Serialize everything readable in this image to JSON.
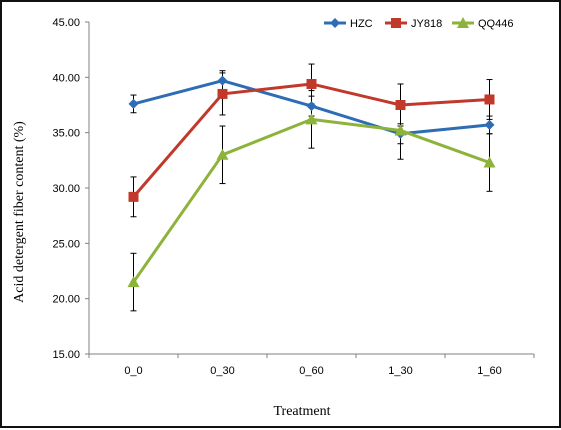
{
  "chart_data": {
    "type": "line",
    "title": "",
    "xlabel": "Treatment",
    "ylabel": "Acid detergent fiber content (%)",
    "categories": [
      "0_0",
      "0_30",
      "0_60",
      "1_30",
      "1_60"
    ],
    "ylim": [
      15,
      45
    ],
    "yticks": [
      "15.00",
      "20.00",
      "25.00",
      "30.00",
      "35.00",
      "40.00",
      "45.00"
    ],
    "grid": false,
    "legend_position": "top-right",
    "series": [
      {
        "name": "HZC",
        "color": "#2E6DB5",
        "marker": "diamond",
        "values": [
          37.6,
          39.7,
          37.4,
          34.9,
          35.7
        ],
        "errors": [
          0.8,
          0.9,
          0.9,
          0.9,
          0.8
        ]
      },
      {
        "name": "JY818",
        "color": "#C0392B",
        "marker": "square",
        "values": [
          29.2,
          38.5,
          39.4,
          37.5,
          38.0
        ],
        "errors": [
          1.8,
          1.9,
          1.8,
          1.9,
          1.8
        ]
      },
      {
        "name": "QQ446",
        "color": "#8DB33A",
        "marker": "triangle",
        "values": [
          21.5,
          33.0,
          36.2,
          35.2,
          32.3
        ],
        "errors": [
          2.6,
          2.6,
          2.6,
          2.6,
          2.6
        ]
      }
    ]
  }
}
